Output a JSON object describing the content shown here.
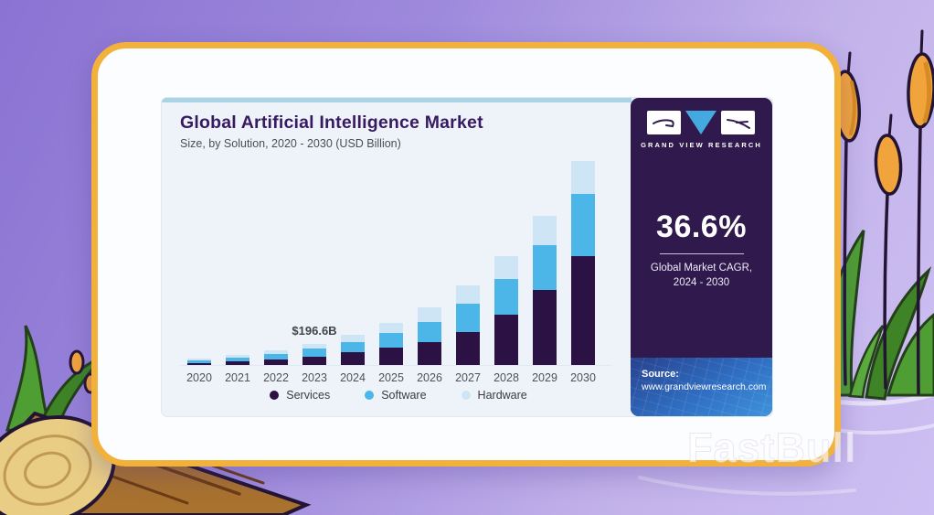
{
  "chart_data": {
    "type": "bar",
    "stacked": true,
    "title": "Global Artificial Intelligence Market",
    "subtitle": "Size, by Solution, 2020 - 2030 (USD Billion)",
    "unit": "USD Billion",
    "categories": [
      "2020",
      "2021",
      "2022",
      "2023",
      "2024",
      "2025",
      "2026",
      "2027",
      "2028",
      "2029",
      "2030"
    ],
    "series": [
      {
        "name": "Services",
        "color": "#2b1144",
        "values": [
          27,
          40,
          58,
          84,
          118,
          160,
          210,
          300,
          452,
          672,
          968
        ]
      },
      {
        "name": "Software",
        "color": "#4cb6e8",
        "values": [
          22,
          32,
          46,
          66,
          93,
          128,
          180,
          252,
          318,
          398,
          552
        ]
      },
      {
        "name": "Hardware",
        "color": "#cde5f5",
        "values": [
          16,
          22,
          33,
          46.6,
          68,
          93,
          131,
          160,
          202,
          258,
          292
        ]
      }
    ],
    "totals_estimated": [
      65,
      94,
      137,
      196.6,
      279,
      381,
      521,
      712,
      972,
      1328,
      1812
    ],
    "annotation": {
      "text": "$196.6B",
      "category": "2023"
    },
    "xlabel": "",
    "ylabel": "",
    "ylim": [
      0,
      1900
    ],
    "grid": false,
    "legend_position": "bottom"
  },
  "sidebar": {
    "brand": "GRAND VIEW RESEARCH",
    "cagr_value": "36.6%",
    "cagr_label_line1": "Global Market CAGR,",
    "cagr_label_line2": "2024 - 2030",
    "source_label": "Source:",
    "source_url": "www.grandviewresearch.com"
  },
  "watermark": {
    "text": "FastBull"
  },
  "colors": {
    "card_border": "#f1b13a",
    "panel_background": "#eef3fa",
    "panel_accent": "#a9d4e4",
    "sidebar_background": "#301a4d",
    "title_text": "#371a60",
    "page_background_purple": "#9e8adc",
    "logo_triangle": "#44a9de"
  }
}
